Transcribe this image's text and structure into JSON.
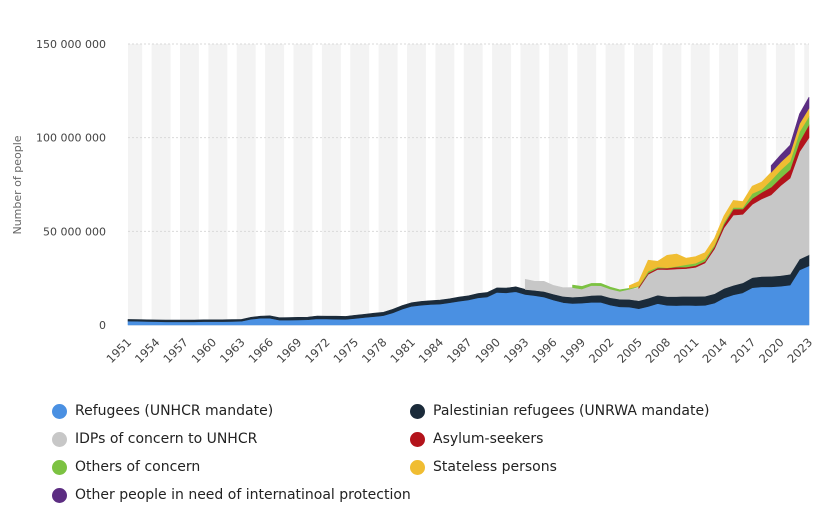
{
  "chart_data": {
    "type": "area",
    "stacked": true,
    "title": "",
    "xlabel": "",
    "ylabel": "Number of people",
    "ylim": [
      0,
      150000000
    ],
    "yticks": [
      0,
      50000000,
      100000000,
      150000000
    ],
    "ytick_labels": [
      "0",
      "50 000 000",
      "100 000 000",
      "150 000 000"
    ],
    "xlim": [
      1951,
      2023
    ],
    "xticks": [
      1951,
      1954,
      1957,
      1960,
      1963,
      1966,
      1969,
      1972,
      1975,
      1978,
      1981,
      1984,
      1987,
      1990,
      1993,
      1996,
      1999,
      2002,
      2005,
      2008,
      2011,
      2014,
      2017,
      2020,
      2023
    ],
    "grid": true,
    "legend_position": "bottom",
    "x": [
      1951,
      1952,
      1953,
      1954,
      1955,
      1956,
      1957,
      1958,
      1959,
      1960,
      1961,
      1962,
      1963,
      1964,
      1965,
      1966,
      1967,
      1968,
      1969,
      1970,
      1971,
      1972,
      1973,
      1974,
      1975,
      1976,
      1977,
      1978,
      1979,
      1980,
      1981,
      1982,
      1983,
      1984,
      1985,
      1986,
      1987,
      1988,
      1989,
      1990,
      1991,
      1992,
      1993,
      1994,
      1995,
      1996,
      1997,
      1998,
      1999,
      2000,
      2001,
      2002,
      2003,
      2004,
      2005,
      2006,
      2007,
      2008,
      2009,
      2010,
      2011,
      2012,
      2013,
      2014,
      2015,
      2016,
      2017,
      2018,
      2019,
      2020,
      2021,
      2022,
      2023
    ],
    "series": [
      {
        "name": "Refugees (UNHCR mandate)",
        "color": "#4a90e2",
        "values": [
          2100000,
          2000000,
          1900000,
          1800000,
          1700000,
          1700000,
          1700000,
          1700000,
          1800000,
          1800000,
          1800000,
          1900000,
          2000000,
          3100000,
          3600000,
          3600000,
          2600000,
          2600000,
          2700000,
          2800000,
          3300000,
          3200000,
          3100000,
          3000000,
          3500000,
          4000000,
          4500000,
          5000000,
          6500000,
          8500000,
          10000000,
          10600000,
          11000000,
          11200000,
          11900000,
          12700000,
          13400000,
          14500000,
          15000000,
          17400000,
          17200000,
          17800000,
          16300000,
          15700000,
          14900000,
          13300000,
          12000000,
          11500000,
          11700000,
          12100000,
          12100000,
          10600000,
          9700000,
          9600000,
          8700000,
          9900000,
          11400000,
          10500000,
          10400000,
          10600000,
          10400000,
          10500000,
          11700000,
          14400000,
          16100000,
          17200000,
          19900000,
          20400000,
          20400000,
          20700000,
          21300000,
          29400000,
          31600000
        ]
      },
      {
        "name": "Palestinian refugees (UNRWA mandate)",
        "color": "#1b2b3a",
        "values": [
          870000,
          880000,
          890000,
          900000,
          910000,
          920000,
          930000,
          940000,
          950000,
          960000,
          970000,
          980000,
          990000,
          1000000,
          1100000,
          1300000,
          1300000,
          1400000,
          1400000,
          1400000,
          1500000,
          1500000,
          1600000,
          1600000,
          1700000,
          1700000,
          1800000,
          1800000,
          1900000,
          1900000,
          1900000,
          2000000,
          2000000,
          2100000,
          2100000,
          2200000,
          2200000,
          2300000,
          2400000,
          2400000,
          2500000,
          2600000,
          2700000,
          2800000,
          3000000,
          3200000,
          3300000,
          3400000,
          3500000,
          3700000,
          3900000,
          4000000,
          4100000,
          4100000,
          4300000,
          4400000,
          4600000,
          4700000,
          4800000,
          4800000,
          4900000,
          4900000,
          5000000,
          5100000,
          5100000,
          5300000,
          5400000,
          5500000,
          5600000,
          5700000,
          5800000,
          5800000,
          5900000
        ]
      },
      {
        "name": "IDPs of concern to UNHCR",
        "color": "#c7c7c7",
        "values": [
          0,
          0,
          0,
          0,
          0,
          0,
          0,
          0,
          0,
          0,
          0,
          0,
          0,
          0,
          0,
          0,
          0,
          0,
          0,
          0,
          0,
          0,
          0,
          0,
          0,
          0,
          0,
          0,
          0,
          0,
          0,
          0,
          0,
          0,
          0,
          0,
          0,
          0,
          0,
          0,
          0,
          0,
          5400000,
          4800000,
          5400000,
          4600000,
          4600000,
          5100000,
          4000000,
          5300000,
          5000000,
          4600000,
          4200000,
          5400000,
          6600000,
          12800000,
          13700000,
          14400000,
          14700000,
          14700000,
          15500000,
          17700000,
          23900000,
          32300000,
          37500000,
          36600000,
          39100000,
          41400000,
          43500000,
          48000000,
          51300000,
          57300000,
          62500000
        ]
      },
      {
        "name": "Asylum-seekers",
        "color": "#b3131b",
        "values": [
          0,
          0,
          0,
          0,
          0,
          0,
          0,
          0,
          0,
          0,
          0,
          0,
          0,
          0,
          0,
          0,
          0,
          0,
          0,
          0,
          0,
          0,
          0,
          0,
          0,
          0,
          0,
          0,
          0,
          0,
          0,
          0,
          0,
          0,
          0,
          0,
          0,
          0,
          0,
          0,
          0,
          0,
          0,
          0,
          0,
          0,
          0,
          0,
          0,
          0,
          0,
          0,
          0,
          0,
          800000,
          700000,
          700000,
          800000,
          1000000,
          800000,
          900000,
          900000,
          1200000,
          1800000,
          3200000,
          2800000,
          3100000,
          3500000,
          4100000,
          4100000,
          4600000,
          5400000,
          6900000
        ]
      },
      {
        "name": "Others of concern",
        "color": "#7cc242",
        "values": [
          0,
          0,
          0,
          0,
          0,
          0,
          0,
          0,
          0,
          0,
          0,
          0,
          0,
          0,
          0,
          0,
          0,
          0,
          0,
          0,
          0,
          0,
          0,
          0,
          0,
          0,
          0,
          0,
          0,
          0,
          0,
          0,
          0,
          0,
          0,
          0,
          0,
          0,
          0,
          0,
          0,
          0,
          0,
          0,
          0,
          0,
          0,
          1300000,
          1400000,
          1100000,
          1200000,
          1000000,
          800000,
          500000,
          400000,
          1000000,
          600000,
          200000,
          400000,
          1300000,
          1300000,
          1300000,
          900000,
          1100000,
          900000,
          800000,
          2700000,
          1600000,
          3700000,
          4200000,
          4300000,
          5200000,
          4500000
        ]
      },
      {
        "name": "Stateless persons",
        "color": "#f0bd32",
        "values": [
          0,
          0,
          0,
          0,
          0,
          0,
          0,
          0,
          0,
          0,
          0,
          0,
          0,
          0,
          0,
          0,
          0,
          0,
          0,
          0,
          0,
          0,
          0,
          0,
          0,
          0,
          0,
          0,
          0,
          0,
          0,
          0,
          0,
          0,
          0,
          0,
          0,
          0,
          0,
          0,
          0,
          0,
          0,
          0,
          0,
          0,
          0,
          0,
          0,
          0,
          0,
          0,
          0,
          1400000,
          2400000,
          5800000,
          3000000,
          6600000,
          6600000,
          3500000,
          3500000,
          3300000,
          3500000,
          3500000,
          3700000,
          3200000,
          3900000,
          3900000,
          4200000,
          4200000,
          4300000,
          4400000,
          4400000
        ]
      },
      {
        "name": "Other people in need of internatinoal protection",
        "color": "#5c2d82",
        "values": [
          0,
          0,
          0,
          0,
          0,
          0,
          0,
          0,
          0,
          0,
          0,
          0,
          0,
          0,
          0,
          0,
          0,
          0,
          0,
          0,
          0,
          0,
          0,
          0,
          0,
          0,
          0,
          0,
          0,
          0,
          0,
          0,
          0,
          0,
          0,
          0,
          0,
          0,
          0,
          0,
          0,
          0,
          0,
          0,
          0,
          0,
          0,
          0,
          0,
          0,
          0,
          0,
          0,
          0,
          0,
          0,
          0,
          0,
          0,
          0,
          0,
          0,
          0,
          0,
          0,
          0,
          0,
          0,
          3600000,
          3900000,
          4400000,
          5200000,
          5800000
        ]
      }
    ]
  }
}
